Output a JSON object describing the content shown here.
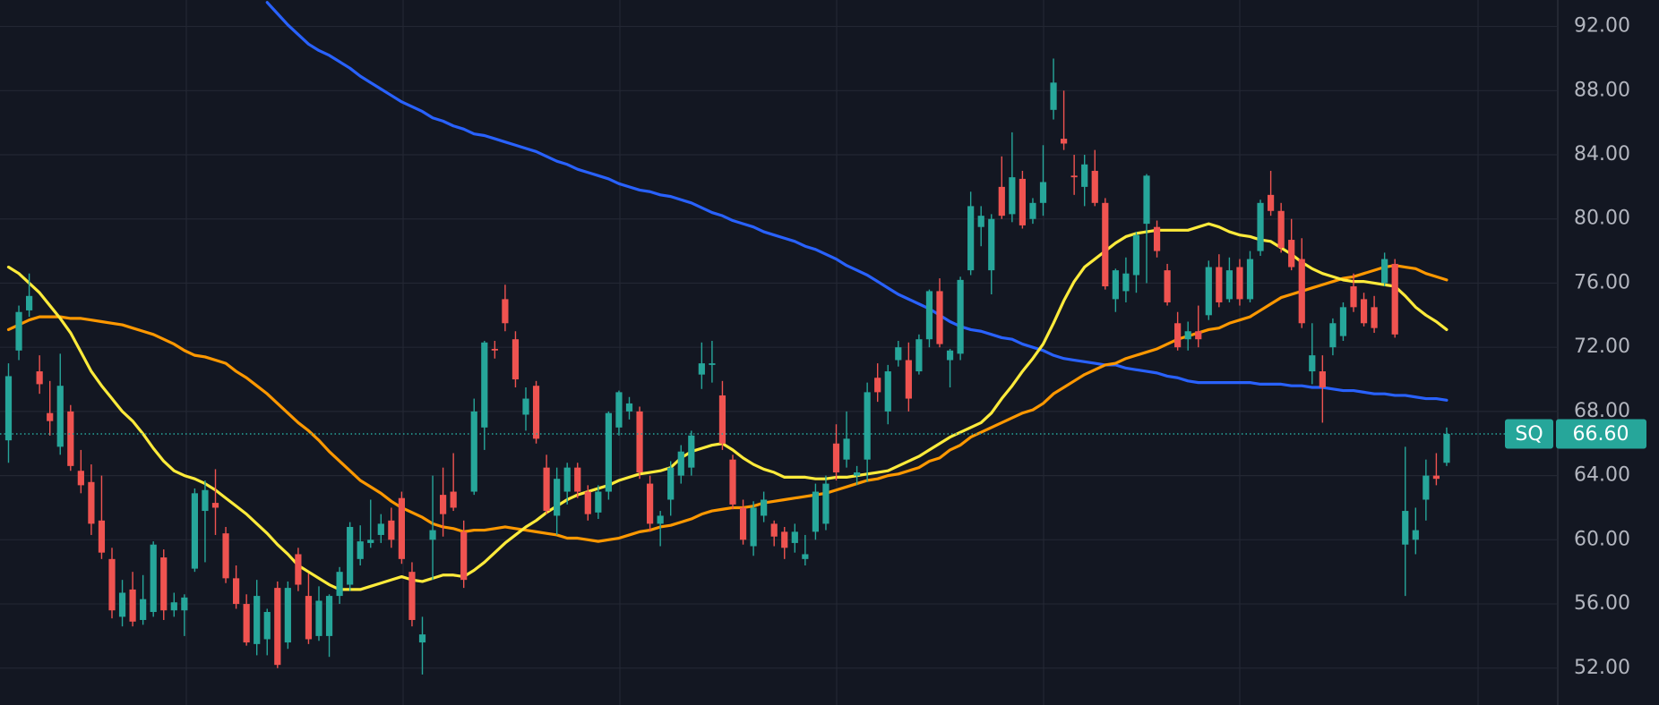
{
  "chart_data": {
    "type": "candlestick",
    "up_color": "#26a69a",
    "down_color": "#ef5350",
    "ylim": [
      49.7,
      93.65
    ],
    "yticks": [
      {
        "value": 52,
        "label": "52.00"
      },
      {
        "value": 56,
        "label": "56.00"
      },
      {
        "value": 60,
        "label": "60.00"
      },
      {
        "value": 64,
        "label": "64.00"
      },
      {
        "value": 68,
        "label": "68.00"
      },
      {
        "value": 72,
        "label": "72.00"
      },
      {
        "value": 76,
        "label": "76.00"
      },
      {
        "value": 80,
        "label": "80.00"
      },
      {
        "value": 84,
        "label": "84.00"
      },
      {
        "value": 88,
        "label": "88.00"
      },
      {
        "value": 92,
        "label": "92.00"
      }
    ],
    "grid": true,
    "last_price": {
      "symbol": "SQ",
      "value": 66.6,
      "label": "66.60",
      "color": "#26a69a"
    },
    "open": [
      66.2,
      71.8,
      74.3,
      70.5,
      67.9,
      65.8,
      68.0,
      64.3,
      63.6,
      61.2,
      58.8,
      55.2,
      56.9,
      55.0,
      55.5,
      58.9,
      55.6,
      55.6,
      58.2,
      61.8,
      62.3,
      60.4,
      57.6,
      56.0,
      53.5,
      53.8,
      57.0,
      53.6,
      59.1,
      56.5,
      54.0,
      54.0,
      56.5,
      57.2,
      58.8,
      59.8,
      60.3,
      61.2,
      62.6,
      58.0,
      53.6,
      60.0,
      62.8,
      63.0,
      60.5,
      63.0,
      67.0,
      71.9,
      75.0,
      72.5,
      67.8,
      69.6,
      64.5,
      61.5,
      63.0,
      64.5,
      63.0,
      61.7,
      63.0,
      67.0,
      68.0,
      68.0,
      63.5,
      61.0,
      62.5,
      64.0,
      64.5,
      70.3,
      70.9,
      69.0,
      65.0,
      62.0,
      59.6,
      61.5,
      61.0,
      60.5,
      59.8,
      58.8,
      60.5,
      61.0,
      66.0,
      65.0,
      64.0,
      65.0,
      70.1,
      68.0,
      71.2,
      71.2,
      70.5,
      72.5,
      75.5,
      71.2,
      71.6,
      76.8,
      79.5,
      76.8,
      82.0,
      80.3,
      82.5,
      80.0,
      81.0,
      86.8,
      85.0,
      82.7,
      82.0,
      83.0,
      81.0,
      75.0,
      75.5,
      76.5,
      79.7,
      79.5,
      76.8,
      73.5,
      72.5,
      73.0,
      74.0,
      77.0,
      75.0,
      77.0,
      75.0,
      78.0,
      81.5,
      80.5,
      78.7,
      77.5,
      70.5,
      70.5,
      72.0,
      72.7,
      75.8,
      75.0,
      74.5,
      76.0,
      77.2,
      59.7,
      60.0,
      62.5,
      64.0,
      64.8
    ],
    "high": [
      71.0,
      74.6,
      76.6,
      71.5,
      69.9,
      71.6,
      68.4,
      65.6,
      64.7,
      64.0,
      59.5,
      57.5,
      58.0,
      57.8,
      59.9,
      59.4,
      56.7,
      56.6,
      63.2,
      63.7,
      64.4,
      60.8,
      58.4,
      56.6,
      57.5,
      55.7,
      57.4,
      57.4,
      59.5,
      57.9,
      57.1,
      56.6,
      58.3,
      61.1,
      60.9,
      62.5,
      61.6,
      62.0,
      63.0,
      58.6,
      55.2,
      64.0,
      64.5,
      65.4,
      61.2,
      68.8,
      72.4,
      72.4,
      75.9,
      73.0,
      69.5,
      69.9,
      65.3,
      64.5,
      64.8,
      64.8,
      63.4,
      63.4,
      68.0,
      69.3,
      68.9,
      68.3,
      64.0,
      61.8,
      64.9,
      65.9,
      66.8,
      72.3,
      72.4,
      69.9,
      65.3,
      62.5,
      62.4,
      63.0,
      61.2,
      60.8,
      61.0,
      60.3,
      63.5,
      64.0,
      67.2,
      68.0,
      64.6,
      69.8,
      71.0,
      70.9,
      72.4,
      72.3,
      72.8,
      75.6,
      76.3,
      71.9,
      76.4,
      81.7,
      80.8,
      80.3,
      83.9,
      85.4,
      83.0,
      81.3,
      84.6,
      90.0,
      88.0,
      84.0,
      84.0,
      84.3,
      81.3,
      76.9,
      77.6,
      79.2,
      82.8,
      79.9,
      77.2,
      74.2,
      73.6,
      74.6,
      77.4,
      77.8,
      77.6,
      77.5,
      78.0,
      81.2,
      83.0,
      81.0,
      80.0,
      78.8,
      73.5,
      71.5,
      73.8,
      74.8,
      76.6,
      75.4,
      75.2,
      77.9,
      77.5,
      65.8,
      62.0,
      65.0,
      65.4,
      67.0
    ],
    "low": [
      64.8,
      71.2,
      73.9,
      69.1,
      66.5,
      65.3,
      64.3,
      62.9,
      60.3,
      58.8,
      55.1,
      54.6,
      54.6,
      54.7,
      55.2,
      55.0,
      55.2,
      54.0,
      58.0,
      58.6,
      60.3,
      57.3,
      55.7,
      53.4,
      52.8,
      52.8,
      52.0,
      53.2,
      56.8,
      53.5,
      53.7,
      52.7,
      56.0,
      56.8,
      58.4,
      59.5,
      59.8,
      59.5,
      58.5,
      54.6,
      51.6,
      57.5,
      60.2,
      61.8,
      57.0,
      62.8,
      65.6,
      71.3,
      73.0,
      69.5,
      66.8,
      66.0,
      61.6,
      60.3,
      62.2,
      62.6,
      61.2,
      61.3,
      62.5,
      66.5,
      67.5,
      63.8,
      60.5,
      59.6,
      61.5,
      63.5,
      64.0,
      69.4,
      69.8,
      65.6,
      61.9,
      59.7,
      59.0,
      61.1,
      59.6,
      58.8,
      59.2,
      58.4,
      60.0,
      60.6,
      63.7,
      64.5,
      63.4,
      63.6,
      68.6,
      67.2,
      70.8,
      68.0,
      70.3,
      72.0,
      72.0,
      69.5,
      71.2,
      76.5,
      78.3,
      75.3,
      80.0,
      79.8,
      79.4,
      79.7,
      80.2,
      86.2,
      84.3,
      81.5,
      80.8,
      80.8,
      75.6,
      74.2,
      74.8,
      75.4,
      76.0,
      77.6,
      74.6,
      71.8,
      71.8,
      72.0,
      73.7,
      74.5,
      74.8,
      74.6,
      74.8,
      77.7,
      80.2,
      77.9,
      76.8,
      73.2,
      69.7,
      67.3,
      71.5,
      72.4,
      74.2,
      73.3,
      72.9,
      75.8,
      72.6,
      56.5,
      59.1,
      61.2,
      63.4,
      64.6
    ],
    "close": [
      70.2,
      74.2,
      75.2,
      69.7,
      67.4,
      69.6,
      64.6,
      63.4,
      61.0,
      59.2,
      55.6,
      56.7,
      54.9,
      56.3,
      59.7,
      55.6,
      56.1,
      56.4,
      62.9,
      63.1,
      62.0,
      57.6,
      56.0,
      53.6,
      56.5,
      55.5,
      52.2,
      57.0,
      57.2,
      53.8,
      56.2,
      56.5,
      58.0,
      60.8,
      59.9,
      60.0,
      61.0,
      60.0,
      58.8,
      55.0,
      54.1,
      60.6,
      61.6,
      62.0,
      57.5,
      68.0,
      72.3,
      71.8,
      73.5,
      70.0,
      68.8,
      66.3,
      61.8,
      63.8,
      64.5,
      63.0,
      61.6,
      63.0,
      67.9,
      69.2,
      68.5,
      64.2,
      61.0,
      61.5,
      64.5,
      65.5,
      66.5,
      71.0,
      71.0,
      66.0,
      62.2,
      60.0,
      62.0,
      62.5,
      60.2,
      59.5,
      60.5,
      59.1,
      63.0,
      63.5,
      64.2,
      66.3,
      64.2,
      69.2,
      69.2,
      70.5,
      72.0,
      68.8,
      72.5,
      75.5,
      72.2,
      71.8,
      76.2,
      80.8,
      80.2,
      80.0,
      80.2,
      82.6,
      79.6,
      81.0,
      82.3,
      88.5,
      84.7,
      82.6,
      83.4,
      81.0,
      75.8,
      76.8,
      76.6,
      79.0,
      82.7,
      78.0,
      74.8,
      72.0,
      73.0,
      72.5,
      77.0,
      74.8,
      76.8,
      75.0,
      77.5,
      81.0,
      80.5,
      78.2,
      77.0,
      73.5,
      71.5,
      69.5,
      73.5,
      74.5,
      74.5,
      73.5,
      73.2,
      77.5,
      72.8,
      61.8,
      60.6,
      64.0,
      63.8,
      66.6
    ],
    "series": [
      {
        "color": "#2962ff",
        "values": [
          null,
          null,
          null,
          null,
          null,
          null,
          null,
          null,
          null,
          null,
          null,
          null,
          null,
          null,
          null,
          null,
          null,
          null,
          null,
          null,
          null,
          null,
          null,
          null,
          null,
          93.5,
          92.8,
          92.1,
          91.5,
          90.9,
          90.5,
          90.2,
          89.8,
          89.4,
          88.9,
          88.5,
          88.1,
          87.7,
          87.3,
          87.0,
          86.7,
          86.3,
          86.1,
          85.8,
          85.6,
          85.3,
          85.2,
          85.0,
          84.8,
          84.6,
          84.4,
          84.2,
          83.9,
          83.6,
          83.4,
          83.1,
          82.9,
          82.7,
          82.5,
          82.2,
          82.0,
          81.8,
          81.7,
          81.5,
          81.4,
          81.2,
          81.0,
          80.7,
          80.4,
          80.2,
          79.9,
          79.7,
          79.5,
          79.2,
          79.0,
          78.8,
          78.6,
          78.3,
          78.1,
          77.8,
          77.5,
          77.1,
          76.8,
          76.5,
          76.1,
          75.7,
          75.3,
          75.0,
          74.7,
          74.4,
          74.0,
          73.6,
          73.3,
          73.1,
          73.0,
          72.8,
          72.6,
          72.5,
          72.2,
          72.0,
          71.8,
          71.5,
          71.3,
          71.2,
          71.1,
          71.0,
          70.9,
          70.9,
          70.7,
          70.6,
          70.5,
          70.4,
          70.2,
          70.1,
          69.9,
          69.8,
          69.8,
          69.8,
          69.8,
          69.8,
          69.8,
          69.7,
          69.7,
          69.7,
          69.6,
          69.6,
          69.5,
          69.5,
          69.4,
          69.3,
          69.3,
          69.2,
          69.1,
          69.1,
          69.0,
          69.0,
          68.9,
          68.8,
          68.8,
          68.7
        ]
      },
      {
        "color": "#ff9800",
        "values": [
          73.1,
          73.4,
          73.7,
          73.9,
          73.9,
          73.9,
          73.8,
          73.8,
          73.7,
          73.6,
          73.5,
          73.4,
          73.2,
          73.0,
          72.8,
          72.5,
          72.2,
          71.8,
          71.5,
          71.4,
          71.2,
          71.0,
          70.5,
          70.1,
          69.6,
          69.1,
          68.5,
          67.9,
          67.3,
          66.8,
          66.2,
          65.5,
          64.9,
          64.3,
          63.7,
          63.3,
          62.9,
          62.4,
          62.0,
          61.7,
          61.4,
          61.0,
          60.8,
          60.7,
          60.5,
          60.6,
          60.6,
          60.7,
          60.8,
          60.7,
          60.6,
          60.5,
          60.4,
          60.3,
          60.1,
          60.1,
          60.0,
          59.9,
          60.0,
          60.1,
          60.3,
          60.5,
          60.6,
          60.8,
          60.9,
          61.1,
          61.3,
          61.6,
          61.8,
          61.9,
          62.0,
          62.0,
          62.1,
          62.3,
          62.4,
          62.5,
          62.6,
          62.7,
          62.8,
          62.9,
          63.1,
          63.3,
          63.5,
          63.7,
          63.8,
          64.0,
          64.1,
          64.3,
          64.5,
          64.9,
          65.1,
          65.6,
          65.9,
          66.4,
          66.7,
          67.0,
          67.3,
          67.6,
          67.9,
          68.1,
          68.5,
          69.1,
          69.5,
          69.9,
          70.3,
          70.6,
          70.9,
          71.0,
          71.3,
          71.5,
          71.7,
          71.9,
          72.2,
          72.5,
          72.7,
          72.9,
          73.1,
          73.2,
          73.5,
          73.7,
          73.9,
          74.3,
          74.7,
          75.1,
          75.3,
          75.5,
          75.7,
          75.9,
          76.1,
          76.3,
          76.4,
          76.6,
          76.8,
          77.0,
          77.1,
          77.0,
          76.9,
          76.6,
          76.4,
          76.2
        ]
      },
      {
        "color": "#ffeb3b",
        "values": [
          77.0,
          76.6,
          76.0,
          75.4,
          74.6,
          73.8,
          72.9,
          71.7,
          70.5,
          69.6,
          68.8,
          68.0,
          67.4,
          66.6,
          65.7,
          64.9,
          64.3,
          64.0,
          63.8,
          63.5,
          63.1,
          62.6,
          62.1,
          61.6,
          61.0,
          60.4,
          59.7,
          59.1,
          58.4,
          58.0,
          57.6,
          57.2,
          56.9,
          56.9,
          56.9,
          57.1,
          57.3,
          57.5,
          57.7,
          57.5,
          57.4,
          57.6,
          57.8,
          57.8,
          57.7,
          58.1,
          58.6,
          59.2,
          59.8,
          60.3,
          60.8,
          61.2,
          61.7,
          62.1,
          62.5,
          62.8,
          63.0,
          63.2,
          63.4,
          63.7,
          63.9,
          64.1,
          64.2,
          64.3,
          64.5,
          65.1,
          65.5,
          65.7,
          65.9,
          66.0,
          65.6,
          65.1,
          64.7,
          64.4,
          64.2,
          63.9,
          63.9,
          63.9,
          63.8,
          63.8,
          63.9,
          63.9,
          64.0,
          64.1,
          64.2,
          64.3,
          64.6,
          64.9,
          65.2,
          65.6,
          66.0,
          66.4,
          66.7,
          67.0,
          67.3,
          67.9,
          68.8,
          69.6,
          70.5,
          71.3,
          72.2,
          73.5,
          74.9,
          76.1,
          77.0,
          77.5,
          78.0,
          78.5,
          78.9,
          79.1,
          79.2,
          79.3,
          79.3,
          79.3,
          79.3,
          79.5,
          79.7,
          79.5,
          79.2,
          79.0,
          78.9,
          78.7,
          78.6,
          78.2,
          77.8,
          77.3,
          76.9,
          76.6,
          76.4,
          76.2,
          76.1,
          76.1,
          76.0,
          75.9,
          75.8,
          75.2,
          74.5,
          74.0,
          73.6,
          73.1
        ]
      }
    ]
  }
}
